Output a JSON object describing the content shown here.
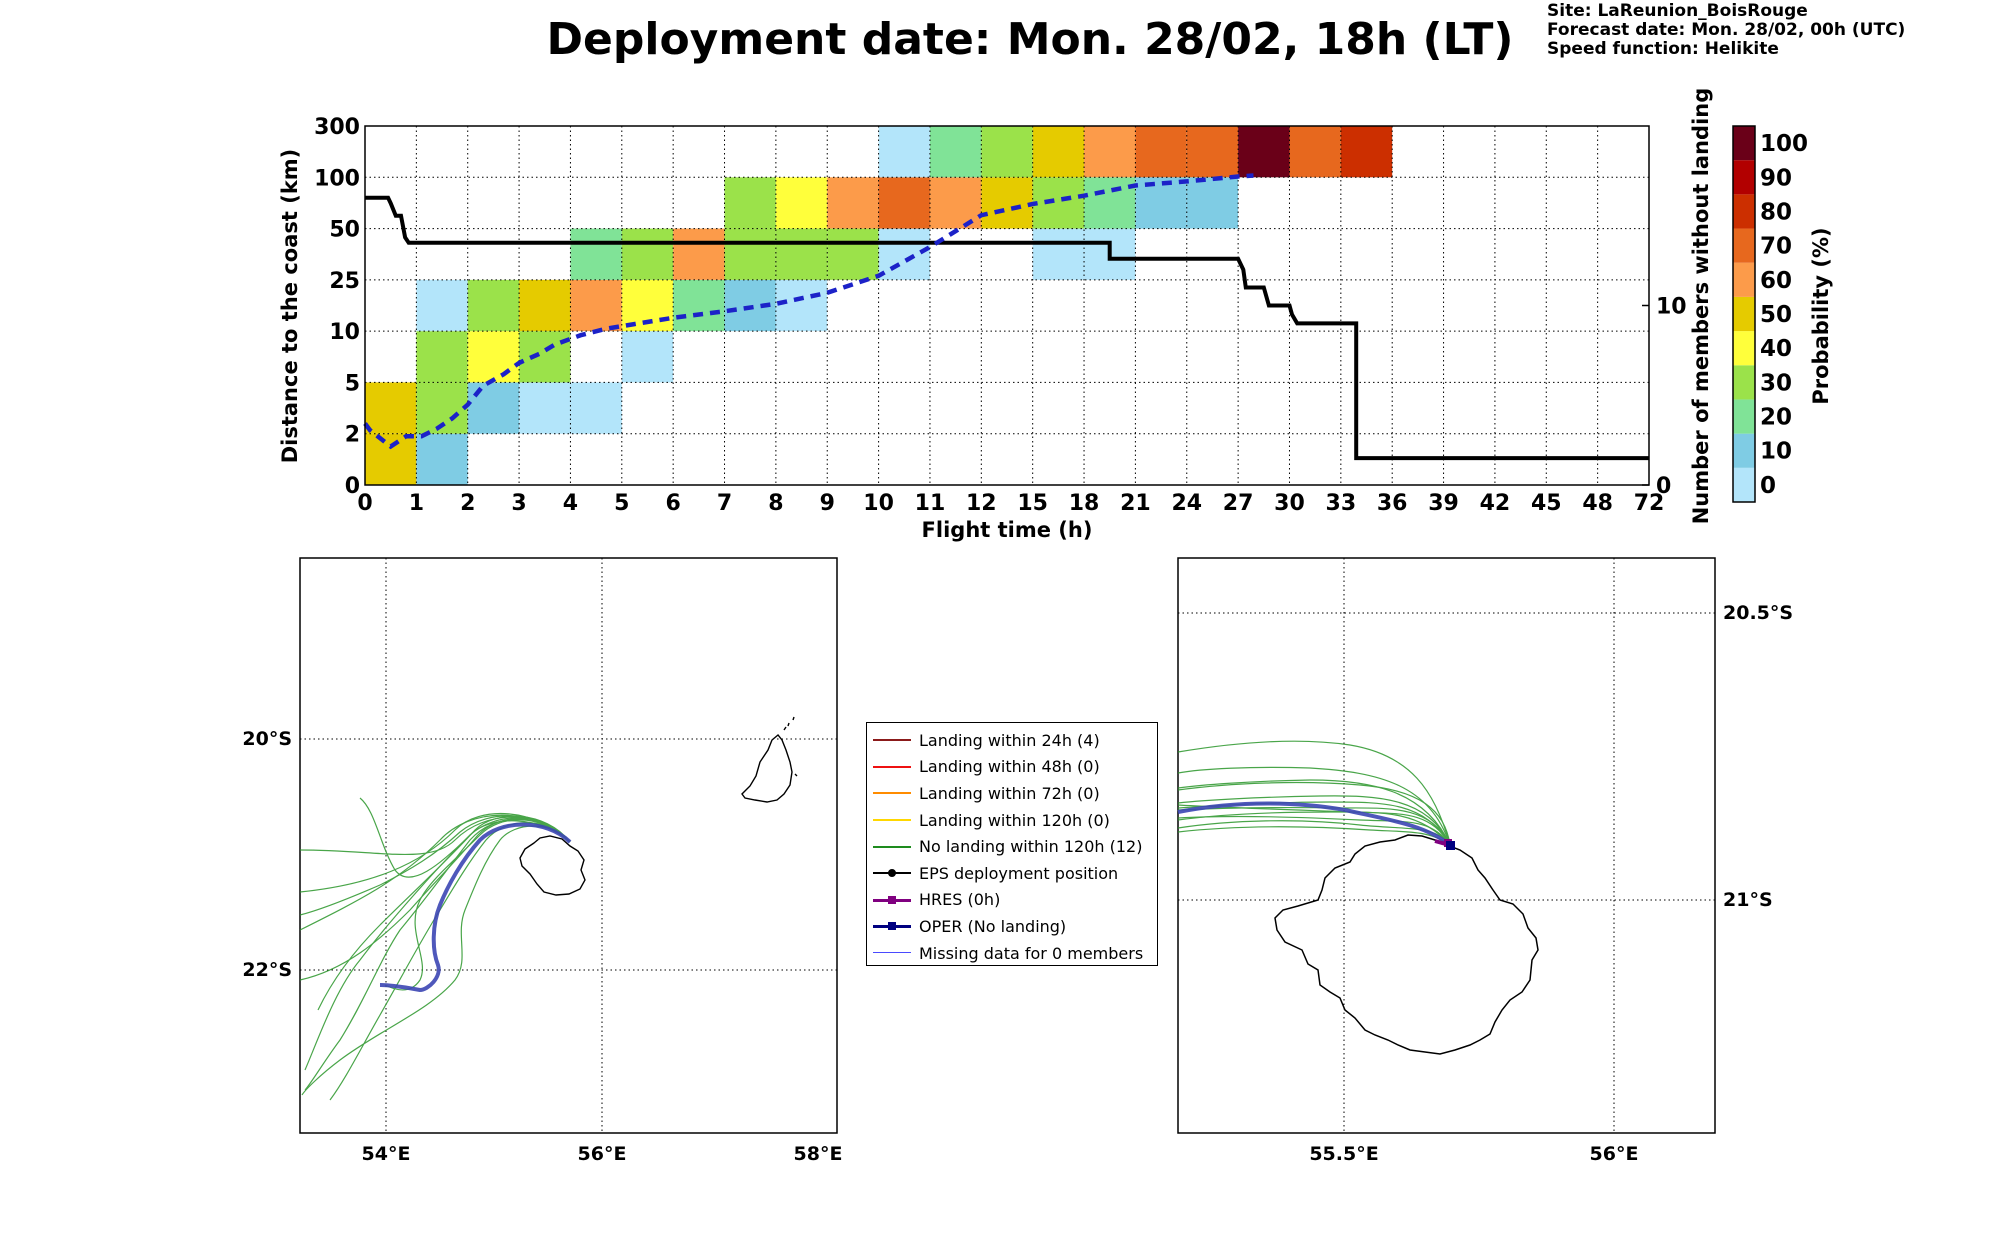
{
  "header": {
    "title": "Deployment date: Mon. 28/02, 18h (LT)",
    "site": "Site: LaReunion_BoisRouge",
    "forecast_date": "Forecast date: Mon. 28/02, 00h (UTC)",
    "speed_function": "Speed function: Helikite"
  },
  "chart_data": [
    {
      "type": "heatmap",
      "xlabel": "Flight time (h)",
      "ylabel": "Distance to the coast (km)",
      "y2label": "Number of members without landing",
      "colorbar_label": "Probability (%)",
      "x_ticks": [
        "0",
        "1",
        "2",
        "3",
        "4",
        "5",
        "6",
        "7",
        "8",
        "9",
        "10",
        "11",
        "12",
        "15",
        "18",
        "21",
        "24",
        "27",
        "30",
        "33",
        "36",
        "39",
        "42",
        "45",
        "48",
        "72"
      ],
      "y_ticks": [
        "0",
        "2",
        "5",
        "10",
        "25",
        "50",
        "100",
        "300"
      ],
      "y2_ticks": [
        "0",
        "10"
      ],
      "y2_range": [
        0,
        20
      ],
      "colorbar_ticks": [
        "0",
        "10",
        "20",
        "30",
        "40",
        "50",
        "60",
        "70",
        "80",
        "90",
        "100"
      ],
      "colorbar_colors": [
        "#b3e5fa",
        "#7fcce4",
        "#80e397",
        "#9be24a",
        "#ffff3b",
        "#e5cb00",
        "#fc9b4a",
        "#e7681e",
        "#cc2f00",
        "#b20000",
        "#6a0018"
      ],
      "grid": true,
      "cells": [
        {
          "x": 0,
          "y": 0,
          "p": 50
        },
        {
          "x": 0,
          "y": 1,
          "p": 50
        },
        {
          "x": 1,
          "y": 0,
          "p": 10
        },
        {
          "x": 1,
          "y": 1,
          "p": 30
        },
        {
          "x": 1,
          "y": 2,
          "p": 30
        },
        {
          "x": 1,
          "y": 3,
          "p": 0
        },
        {
          "x": 2,
          "y": 1,
          "p": 10
        },
        {
          "x": 2,
          "y": 2,
          "p": 40
        },
        {
          "x": 2,
          "y": 3,
          "p": 30
        },
        {
          "x": 3,
          "y": 1,
          "p": 0
        },
        {
          "x": 3,
          "y": 2,
          "p": 30
        },
        {
          "x": 3,
          "y": 3,
          "p": 50
        },
        {
          "x": 4,
          "y": 1,
          "p": 0
        },
        {
          "x": 4,
          "y": 3,
          "p": 60
        },
        {
          "x": 4,
          "y": 4,
          "p": 20
        },
        {
          "x": 5,
          "y": 2,
          "p": 0
        },
        {
          "x": 5,
          "y": 3,
          "p": 40
        },
        {
          "x": 5,
          "y": 4,
          "p": 30
        },
        {
          "x": 6,
          "y": 3,
          "p": 20
        },
        {
          "x": 6,
          "y": 4,
          "p": 60
        },
        {
          "x": 7,
          "y": 3,
          "p": 10
        },
        {
          "x": 7,
          "y": 4,
          "p": 30
        },
        {
          "x": 7,
          "y": 5,
          "p": 30
        },
        {
          "x": 8,
          "y": 3,
          "p": 0
        },
        {
          "x": 8,
          "y": 4,
          "p": 30
        },
        {
          "x": 8,
          "y": 5,
          "p": 40
        },
        {
          "x": 9,
          "y": 4,
          "p": 30
        },
        {
          "x": 9,
          "y": 5,
          "p": 60
        },
        {
          "x": 10,
          "y": 4,
          "p": 0
        },
        {
          "x": 10,
          "y": 5,
          "p": 70
        },
        {
          "x": 10,
          "y": 6,
          "p": 0
        },
        {
          "x": 11,
          "y": 5,
          "p": 60
        },
        {
          "x": 11,
          "y": 6,
          "p": 20
        },
        {
          "x": 12,
          "y": 5,
          "p": 50
        },
        {
          "x": 12,
          "y": 6,
          "p": 30
        },
        {
          "x": 13,
          "y": 4,
          "p": 0
        },
        {
          "x": 13,
          "y": 5,
          "p": 30
        },
        {
          "x": 13,
          "y": 6,
          "p": 50
        },
        {
          "x": 14,
          "y": 4,
          "p": 0
        },
        {
          "x": 14,
          "y": 5,
          "p": 20
        },
        {
          "x": 14,
          "y": 6,
          "p": 60
        },
        {
          "x": 15,
          "y": 5,
          "p": 10
        },
        {
          "x": 15,
          "y": 6,
          "p": 70
        },
        {
          "x": 16,
          "y": 5,
          "p": 10
        },
        {
          "x": 16,
          "y": 6,
          "p": 70
        },
        {
          "x": 17,
          "y": 6,
          "p": 100
        },
        {
          "x": 18,
          "y": 6,
          "p": 70
        },
        {
          "x": 19,
          "y": 6,
          "p": 80
        }
      ],
      "members_without_landing": [
        {
          "x": 0,
          "y": 16
        },
        {
          "x": 0.45,
          "y": 16
        },
        {
          "x": 0.5,
          "y": 15.7
        },
        {
          "x": 0.6,
          "y": 15
        },
        {
          "x": 0.7,
          "y": 15
        },
        {
          "x": 0.78,
          "y": 13.8
        },
        {
          "x": 0.85,
          "y": 13.5
        },
        {
          "x": 14.5,
          "y": 13.5
        },
        {
          "x": 14.5,
          "y": 12.6
        },
        {
          "x": 17,
          "y": 12.6
        },
        {
          "x": 17.1,
          "y": 12
        },
        {
          "x": 17.15,
          "y": 11
        },
        {
          "x": 17.5,
          "y": 11
        },
        {
          "x": 17.6,
          "y": 10
        },
        {
          "x": 18,
          "y": 10
        },
        {
          "x": 18.05,
          "y": 9.5
        },
        {
          "x": 18.15,
          "y": 9
        },
        {
          "x": 18.8,
          "y": 9
        },
        {
          "x": 19.3,
          "y": 9
        },
        {
          "x": 19.3,
          "y": 1.5
        },
        {
          "x": 25,
          "y": 1.5
        }
      ],
      "median_distance": [
        {
          "x": 0,
          "y": 2.6
        },
        {
          "x": 0.1,
          "y": 2.2
        },
        {
          "x": 0.5,
          "y": 1.5
        },
        {
          "x": 0.8,
          "y": 1.9
        },
        {
          "x": 1.1,
          "y": 1.9
        },
        {
          "x": 1.4,
          "y": 2.3
        },
        {
          "x": 1.7,
          "y": 2.9
        },
        {
          "x": 2,
          "y": 3.7
        },
        {
          "x": 2.3,
          "y": 4.8
        },
        {
          "x": 2.7,
          "y": 5.8
        },
        {
          "x": 3,
          "y": 6.9
        },
        {
          "x": 3.4,
          "y": 7.8
        },
        {
          "x": 3.7,
          "y": 8.7
        },
        {
          "x": 4.2,
          "y": 9.6
        },
        {
          "x": 4.7,
          "y": 10.7
        },
        {
          "x": 5.3,
          "y": 12.2
        },
        {
          "x": 6,
          "y": 13.9
        },
        {
          "x": 7,
          "y": 15.8
        },
        {
          "x": 8,
          "y": 18
        },
        {
          "x": 9,
          "y": 21.2
        },
        {
          "x": 10,
          "y": 27
        },
        {
          "x": 11,
          "y": 41
        },
        {
          "x": 12,
          "y": 63
        },
        {
          "x": 13,
          "y": 74
        },
        {
          "x": 14,
          "y": 82
        },
        {
          "x": 15,
          "y": 92
        },
        {
          "x": 16,
          "y": 96
        },
        {
          "x": 17,
          "y": 103
        },
        {
          "x": 17.3,
          "y": 107
        }
      ]
    },
    {
      "type": "map",
      "name": "regional",
      "x_ticks": [
        "54°E",
        "56°E",
        "58°E"
      ],
      "y_ticks": [
        "20°S",
        "22°S"
      ]
    },
    {
      "type": "map",
      "name": "zoom",
      "x_ticks": [
        "55.5°E",
        "56°E"
      ],
      "y_ticks": [
        "20.5°S",
        "21°S"
      ]
    }
  ],
  "legend": {
    "items": [
      {
        "label": "Landing within 24h (4)",
        "color": "#8b1a1a",
        "kind": "line"
      },
      {
        "label": "Landing within 48h (0)",
        "color": "#ee1111",
        "kind": "line"
      },
      {
        "label": "Landing within 72h (0)",
        "color": "#ff8c00",
        "kind": "line"
      },
      {
        "label": "Landing within 120h (0)",
        "color": "#ffd700",
        "kind": "line"
      },
      {
        "label": "No landing within 120h (12)",
        "color": "#1e8b1e",
        "kind": "line"
      },
      {
        "label": "EPS deployment position",
        "color": "#000000",
        "kind": "dot"
      },
      {
        "label": "HRES (0h)",
        "color": "#800080",
        "kind": "square"
      },
      {
        "label": "OPER (No landing)",
        "color": "#000080",
        "kind": "square"
      },
      {
        "label": "Missing data for 0 members",
        "color": "#4a4aff",
        "kind": "thin"
      }
    ]
  }
}
